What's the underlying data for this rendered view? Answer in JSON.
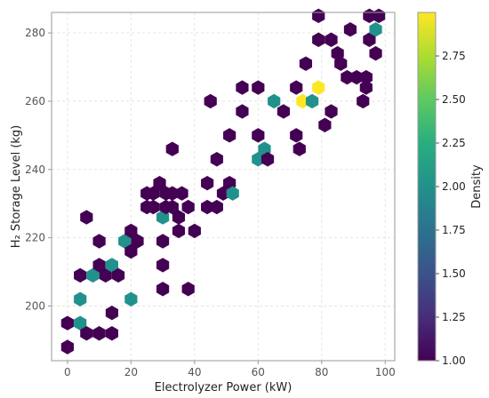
{
  "chart_data": {
    "type": "hexbin",
    "xlabel": "Electrolyzer Power (kW)",
    "ylabel": "H₂ Storage Level (kg)",
    "xlim": [
      -5,
      103
    ],
    "ylim": [
      184,
      286
    ],
    "xticks": [
      "0",
      "20",
      "40",
      "60",
      "80",
      "100"
    ],
    "yticks": [
      "200",
      "220",
      "240",
      "260",
      "280"
    ],
    "grid": true,
    "colorbar": {
      "label": "Density",
      "range": [
        1.0,
        3.0
      ],
      "ticks": [
        "1.00",
        "1.25",
        "1.50",
        "1.75",
        "2.00",
        "2.25",
        "2.50",
        "2.75"
      ],
      "colormap": "viridis"
    },
    "hexbins": [
      {
        "x": 0,
        "y": 188,
        "count": 1
      },
      {
        "x": 0,
        "y": 195,
        "count": 1
      },
      {
        "x": 4,
        "y": 195,
        "count": 2
      },
      {
        "x": 4,
        "y": 202,
        "count": 2
      },
      {
        "x": 4,
        "y": 209,
        "count": 1
      },
      {
        "x": 6,
        "y": 192,
        "count": 1
      },
      {
        "x": 6,
        "y": 226,
        "count": 1
      },
      {
        "x": 8,
        "y": 209,
        "count": 2
      },
      {
        "x": 10,
        "y": 192,
        "count": 1
      },
      {
        "x": 10,
        "y": 212,
        "count": 1
      },
      {
        "x": 10,
        "y": 219,
        "count": 1
      },
      {
        "x": 12,
        "y": 209,
        "count": 1
      },
      {
        "x": 14,
        "y": 192,
        "count": 1
      },
      {
        "x": 14,
        "y": 198,
        "count": 1
      },
      {
        "x": 14,
        "y": 212,
        "count": 2
      },
      {
        "x": 16,
        "y": 209,
        "count": 1
      },
      {
        "x": 18,
        "y": 219,
        "count": 2
      },
      {
        "x": 20,
        "y": 202,
        "count": 2
      },
      {
        "x": 20,
        "y": 216,
        "count": 1
      },
      {
        "x": 20,
        "y": 222,
        "count": 1
      },
      {
        "x": 22,
        "y": 219,
        "count": 1
      },
      {
        "x": 25,
        "y": 229,
        "count": 1
      },
      {
        "x": 25,
        "y": 233,
        "count": 1
      },
      {
        "x": 27,
        "y": 229,
        "count": 1
      },
      {
        "x": 27,
        "y": 233,
        "count": 1
      },
      {
        "x": 29,
        "y": 236,
        "count": 1
      },
      {
        "x": 30,
        "y": 205,
        "count": 1
      },
      {
        "x": 30,
        "y": 212,
        "count": 1
      },
      {
        "x": 30,
        "y": 219,
        "count": 1
      },
      {
        "x": 30,
        "y": 226,
        "count": 2
      },
      {
        "x": 31,
        "y": 229,
        "count": 1
      },
      {
        "x": 31,
        "y": 233,
        "count": 1
      },
      {
        "x": 33,
        "y": 229,
        "count": 1
      },
      {
        "x": 33,
        "y": 233,
        "count": 1
      },
      {
        "x": 33,
        "y": 246,
        "count": 1
      },
      {
        "x": 35,
        "y": 222,
        "count": 1
      },
      {
        "x": 35,
        "y": 226,
        "count": 1
      },
      {
        "x": 36,
        "y": 233,
        "count": 1
      },
      {
        "x": 38,
        "y": 205,
        "count": 1
      },
      {
        "x": 38,
        "y": 229,
        "count": 1
      },
      {
        "x": 40,
        "y": 222,
        "count": 1
      },
      {
        "x": 44,
        "y": 229,
        "count": 1
      },
      {
        "x": 44,
        "y": 236,
        "count": 1
      },
      {
        "x": 45,
        "y": 260,
        "count": 1
      },
      {
        "x": 47,
        "y": 229,
        "count": 1
      },
      {
        "x": 47,
        "y": 243,
        "count": 1
      },
      {
        "x": 49,
        "y": 233,
        "count": 1
      },
      {
        "x": 51,
        "y": 236,
        "count": 1
      },
      {
        "x": 51,
        "y": 250,
        "count": 1
      },
      {
        "x": 52,
        "y": 233,
        "count": 2
      },
      {
        "x": 55,
        "y": 257,
        "count": 1
      },
      {
        "x": 55,
        "y": 264,
        "count": 1
      },
      {
        "x": 60,
        "y": 243,
        "count": 2
      },
      {
        "x": 60,
        "y": 250,
        "count": 1
      },
      {
        "x": 60,
        "y": 264,
        "count": 1
      },
      {
        "x": 62,
        "y": 246,
        "count": 2
      },
      {
        "x": 63,
        "y": 243,
        "count": 1
      },
      {
        "x": 65,
        "y": 260,
        "count": 2
      },
      {
        "x": 68,
        "y": 257,
        "count": 1
      },
      {
        "x": 72,
        "y": 250,
        "count": 1
      },
      {
        "x": 72,
        "y": 264,
        "count": 1
      },
      {
        "x": 73,
        "y": 246,
        "count": 1
      },
      {
        "x": 74,
        "y": 260,
        "count": 3
      },
      {
        "x": 75,
        "y": 271,
        "count": 1
      },
      {
        "x": 77,
        "y": 260,
        "count": 2
      },
      {
        "x": 79,
        "y": 264,
        "count": 3
      },
      {
        "x": 79,
        "y": 278,
        "count": 1
      },
      {
        "x": 79,
        "y": 285,
        "count": 1
      },
      {
        "x": 81,
        "y": 253,
        "count": 1
      },
      {
        "x": 83,
        "y": 257,
        "count": 1
      },
      {
        "x": 83,
        "y": 278,
        "count": 1
      },
      {
        "x": 85,
        "y": 274,
        "count": 1
      },
      {
        "x": 86,
        "y": 271,
        "count": 1
      },
      {
        "x": 88,
        "y": 267,
        "count": 1
      },
      {
        "x": 89,
        "y": 281,
        "count": 1
      },
      {
        "x": 91,
        "y": 267,
        "count": 1
      },
      {
        "x": 93,
        "y": 260,
        "count": 1
      },
      {
        "x": 94,
        "y": 264,
        "count": 1
      },
      {
        "x": 94,
        "y": 267,
        "count": 1
      },
      {
        "x": 95,
        "y": 278,
        "count": 1
      },
      {
        "x": 95,
        "y": 285,
        "count": 1
      },
      {
        "x": 97,
        "y": 274,
        "count": 1
      },
      {
        "x": 97,
        "y": 281,
        "count": 2
      },
      {
        "x": 98,
        "y": 285,
        "count": 1
      }
    ]
  }
}
